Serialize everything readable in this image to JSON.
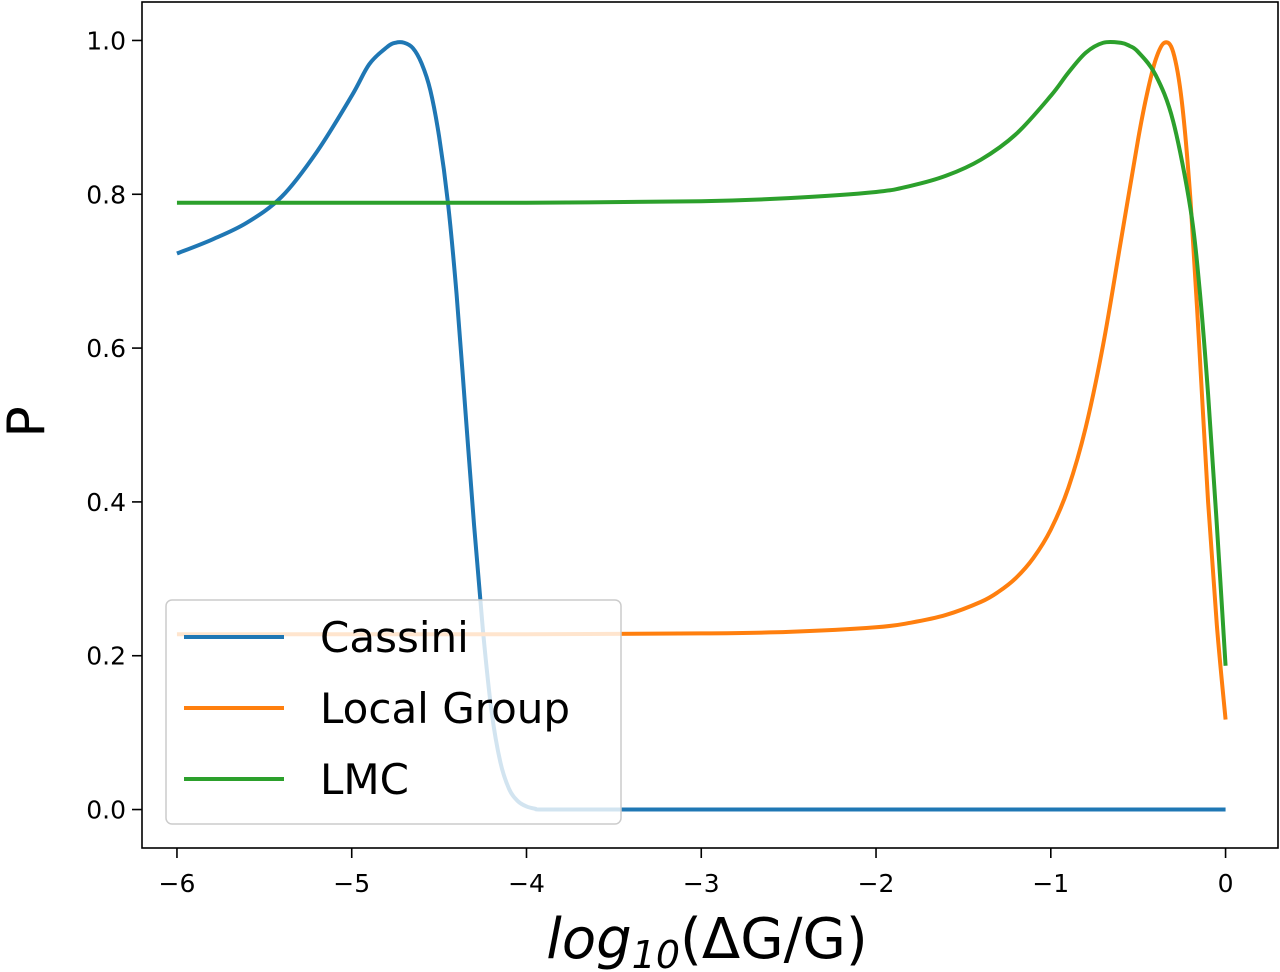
{
  "chart_data": {
    "type": "line",
    "title": "",
    "xlabel": {
      "base": "log",
      "subscript": "10",
      "rest": "(ΔG/G)"
    },
    "ylabel": "P",
    "xlim": [
      -6.2,
      0.3
    ],
    "ylim": [
      -0.05,
      1.05
    ],
    "xticks": [
      -6,
      -5,
      -4,
      -3,
      -2,
      -1,
      0
    ],
    "xtick_labels": [
      "−6",
      "−5",
      "−4",
      "−3",
      "−2",
      "−1",
      "0"
    ],
    "yticks": [
      0.0,
      0.2,
      0.4,
      0.6,
      0.8,
      1.0
    ],
    "ytick_labels": [
      "0.0",
      "0.2",
      "0.4",
      "0.6",
      "0.8",
      "1.0"
    ],
    "grid": false,
    "legend_position": "lower-left",
    "series": [
      {
        "name": "Cassini",
        "color": "#1f77b4",
        "x": [
          -6.0,
          -5.8,
          -5.6,
          -5.4,
          -5.2,
          -5.0,
          -4.9,
          -4.8,
          -4.75,
          -4.7,
          -4.65,
          -4.6,
          -4.55,
          -4.5,
          -4.45,
          -4.4,
          -4.35,
          -4.3,
          -4.25,
          -4.2,
          -4.15,
          -4.1,
          -4.05,
          -4.0,
          -3.95,
          -3.9,
          -3.5,
          -3.0,
          -2.0,
          -1.0,
          0.0
        ],
        "y": [
          0.723,
          0.741,
          0.763,
          0.797,
          0.855,
          0.928,
          0.969,
          0.991,
          0.997,
          0.997,
          0.99,
          0.97,
          0.935,
          0.875,
          0.79,
          0.67,
          0.52,
          0.37,
          0.235,
          0.128,
          0.062,
          0.027,
          0.011,
          0.004,
          0.001,
          0.0,
          0.0,
          0.0,
          0.0,
          0.0,
          0.0
        ]
      },
      {
        "name": "Local Group",
        "color": "#ff7f0e",
        "x": [
          -6.0,
          -5.0,
          -4.0,
          -3.0,
          -2.5,
          -2.0,
          -1.8,
          -1.6,
          -1.4,
          -1.3,
          -1.2,
          -1.1,
          -1.0,
          -0.9,
          -0.8,
          -0.7,
          -0.6,
          -0.5,
          -0.45,
          -0.4,
          -0.35,
          -0.3,
          -0.25,
          -0.2,
          -0.15,
          -0.1,
          -0.05,
          0.0
        ],
        "y": [
          0.228,
          0.228,
          0.228,
          0.229,
          0.231,
          0.237,
          0.243,
          0.253,
          0.27,
          0.283,
          0.301,
          0.327,
          0.364,
          0.418,
          0.497,
          0.605,
          0.738,
          0.872,
          0.93,
          0.975,
          0.997,
          0.985,
          0.92,
          0.79,
          0.6,
          0.4,
          0.24,
          0.117
        ]
      },
      {
        "name": "LMC",
        "color": "#2ca02c",
        "x": [
          -6.0,
          -5.0,
          -4.0,
          -3.0,
          -2.5,
          -2.0,
          -1.8,
          -1.6,
          -1.4,
          -1.2,
          -1.0,
          -0.9,
          -0.8,
          -0.7,
          -0.6,
          -0.55,
          -0.5,
          -0.4,
          -0.3,
          -0.2,
          -0.15,
          -0.1,
          -0.05,
          0.0
        ],
        "y": [
          0.789,
          0.789,
          0.789,
          0.791,
          0.795,
          0.803,
          0.811,
          0.824,
          0.845,
          0.878,
          0.928,
          0.958,
          0.984,
          0.997,
          0.997,
          0.993,
          0.985,
          0.955,
          0.895,
          0.78,
          0.68,
          0.54,
          0.37,
          0.187
        ]
      }
    ]
  }
}
